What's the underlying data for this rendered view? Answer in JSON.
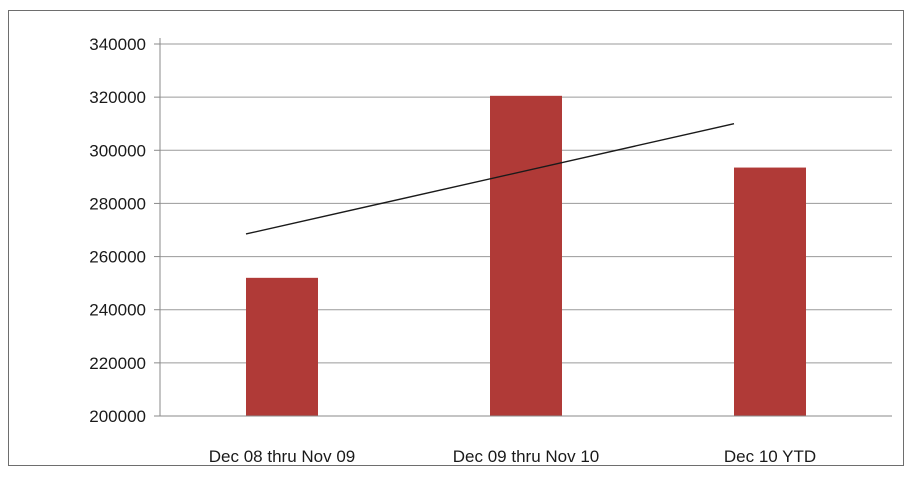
{
  "chart_data": {
    "type": "bar",
    "title": "",
    "xlabel": "",
    "ylabel": "",
    "categories": [
      "Dec 08 thru Nov 09",
      "Dec 09 thru Nov 10",
      "Dec 10 YTD"
    ],
    "series": [
      {
        "values": [
          252000,
          320500,
          293500
        ],
        "color": "#b03a37"
      }
    ],
    "trendline": {
      "type": "linear",
      "values": [
        268500,
        289500,
        310000
      ],
      "color": "#1a1a1a"
    },
    "ylim": [
      200000,
      340000
    ],
    "yticks": [
      200000,
      220000,
      240000,
      260000,
      280000,
      300000,
      320000,
      340000
    ],
    "ytick_labels": [
      "200000",
      "220000",
      "240000",
      "260000",
      "280000",
      "300000",
      "320000",
      "340000"
    ],
    "grid": true,
    "legend": "none"
  }
}
